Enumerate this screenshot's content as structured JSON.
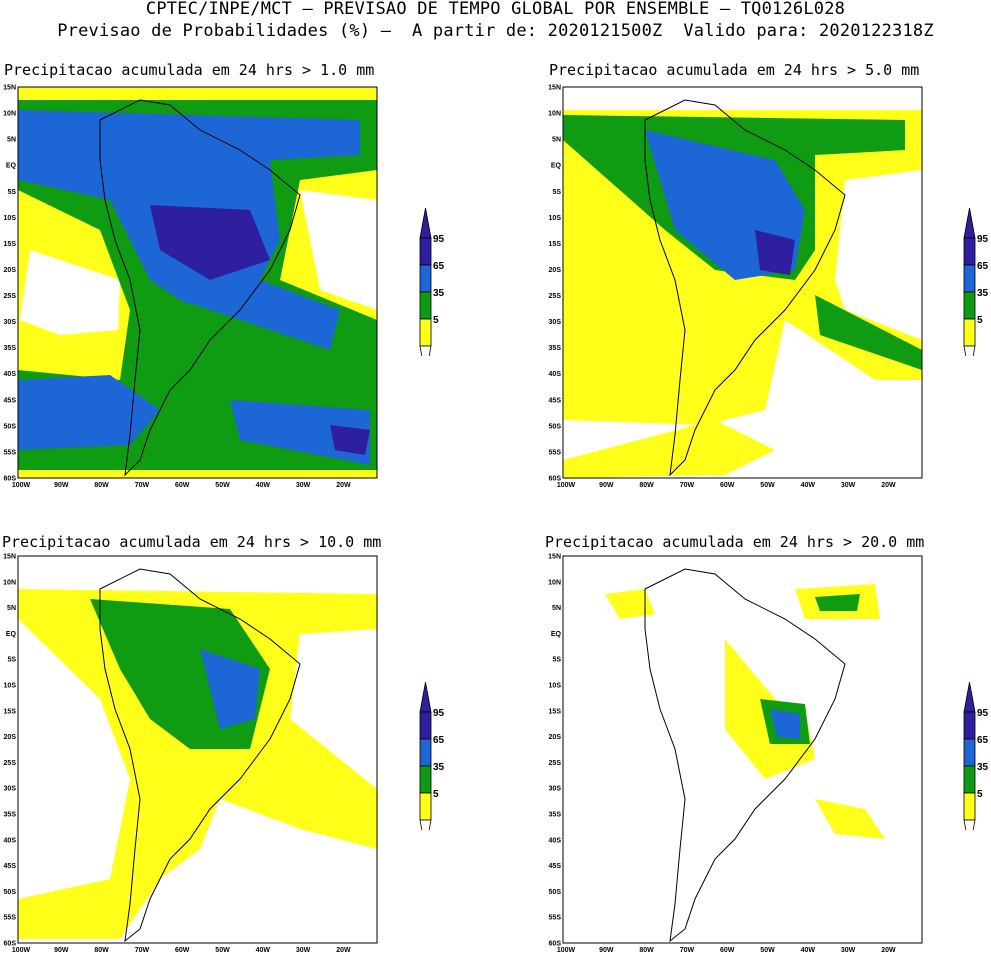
{
  "header": {
    "line1": "CPTEC/INPE/MCT — PREVISAO DE TEMPO GLOBAL POR ENSEMBLE — TQ0126L028",
    "line2": "Previsao de Probabilidades (%) —  A partir de: 2020121500Z  Valido para: 2020122318Z"
  },
  "panels": [
    {
      "title": "Precipitacao acumulada em 24 hrs > 1.0 mm"
    },
    {
      "title": "Precipitacao acumulada em 24 hrs > 5.0 mm"
    },
    {
      "title": "Precipitacao acumulada em 24 hrs > 10.0 mm"
    },
    {
      "title": "Precipitacao acumulada em 24 hrs > 20.0 mm"
    }
  ],
  "lat_labels": [
    "15N",
    "10N",
    "5N",
    "EQ",
    "5S",
    "10S",
    "15S",
    "20S",
    "25S",
    "30S",
    "35S",
    "40S",
    "45S",
    "50S",
    "55S",
    "60S"
  ],
  "lon_labels": [
    "100W",
    "90W",
    "80W",
    "70W",
    "60W",
    "50W",
    "40W",
    "30W",
    "20W"
  ],
  "colorbar": {
    "labels": [
      "95",
      "65",
      "35",
      "5"
    ],
    "colors": {
      "p95": "#2d1f9e",
      "p65": "#1c66d6",
      "p35": "#0f9c12",
      "p5": "#ffff1a",
      "blank": "#ffffff"
    }
  }
}
